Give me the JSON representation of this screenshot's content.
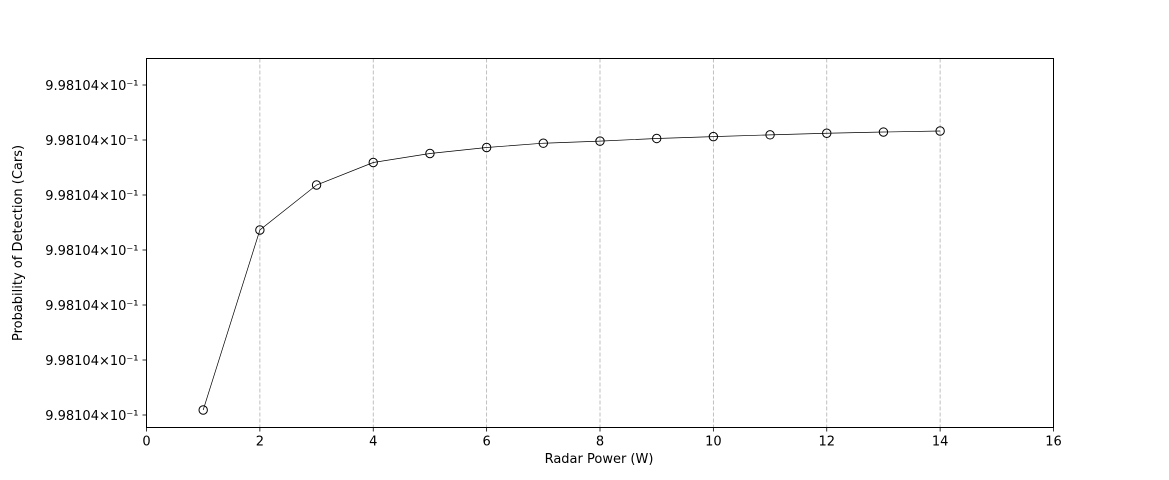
{
  "chart_data": {
    "type": "line",
    "title": "",
    "xlabel": "Radar Power (W)",
    "ylabel": "Probability of Detection (Cars)",
    "xlim": [
      0,
      16
    ],
    "x_ticks": [
      0,
      2,
      4,
      6,
      8,
      10,
      12,
      14,
      16
    ],
    "x_tick_labels": [
      "0",
      "2",
      "4",
      "6",
      "8",
      "10",
      "12",
      "14",
      "16"
    ],
    "y_scale": "log",
    "y_tick_labels": [
      "9.98104×10⁻¹",
      "9.98104×10⁻¹",
      "9.98104×10⁻¹",
      "9.98104×10⁻¹",
      "9.98104×10⁻¹",
      "9.98104×10⁻¹",
      "9.98104×10⁻¹"
    ],
    "grid": "x-major-dashed",
    "marker": "open-circle",
    "line_color": "#000000",
    "grid_color": "#b0b0b0",
    "x": [
      1,
      2,
      3,
      4,
      5,
      6,
      7,
      8,
      9,
      10,
      11,
      12,
      13,
      14
    ],
    "y_relative": [
      0.0,
      0.6667,
      0.8333,
      0.9167,
      0.95,
      0.9722,
      0.9881,
      0.9958,
      1.0056,
      1.0125,
      1.0191,
      1.025,
      1.0295,
      1.0333
    ]
  }
}
